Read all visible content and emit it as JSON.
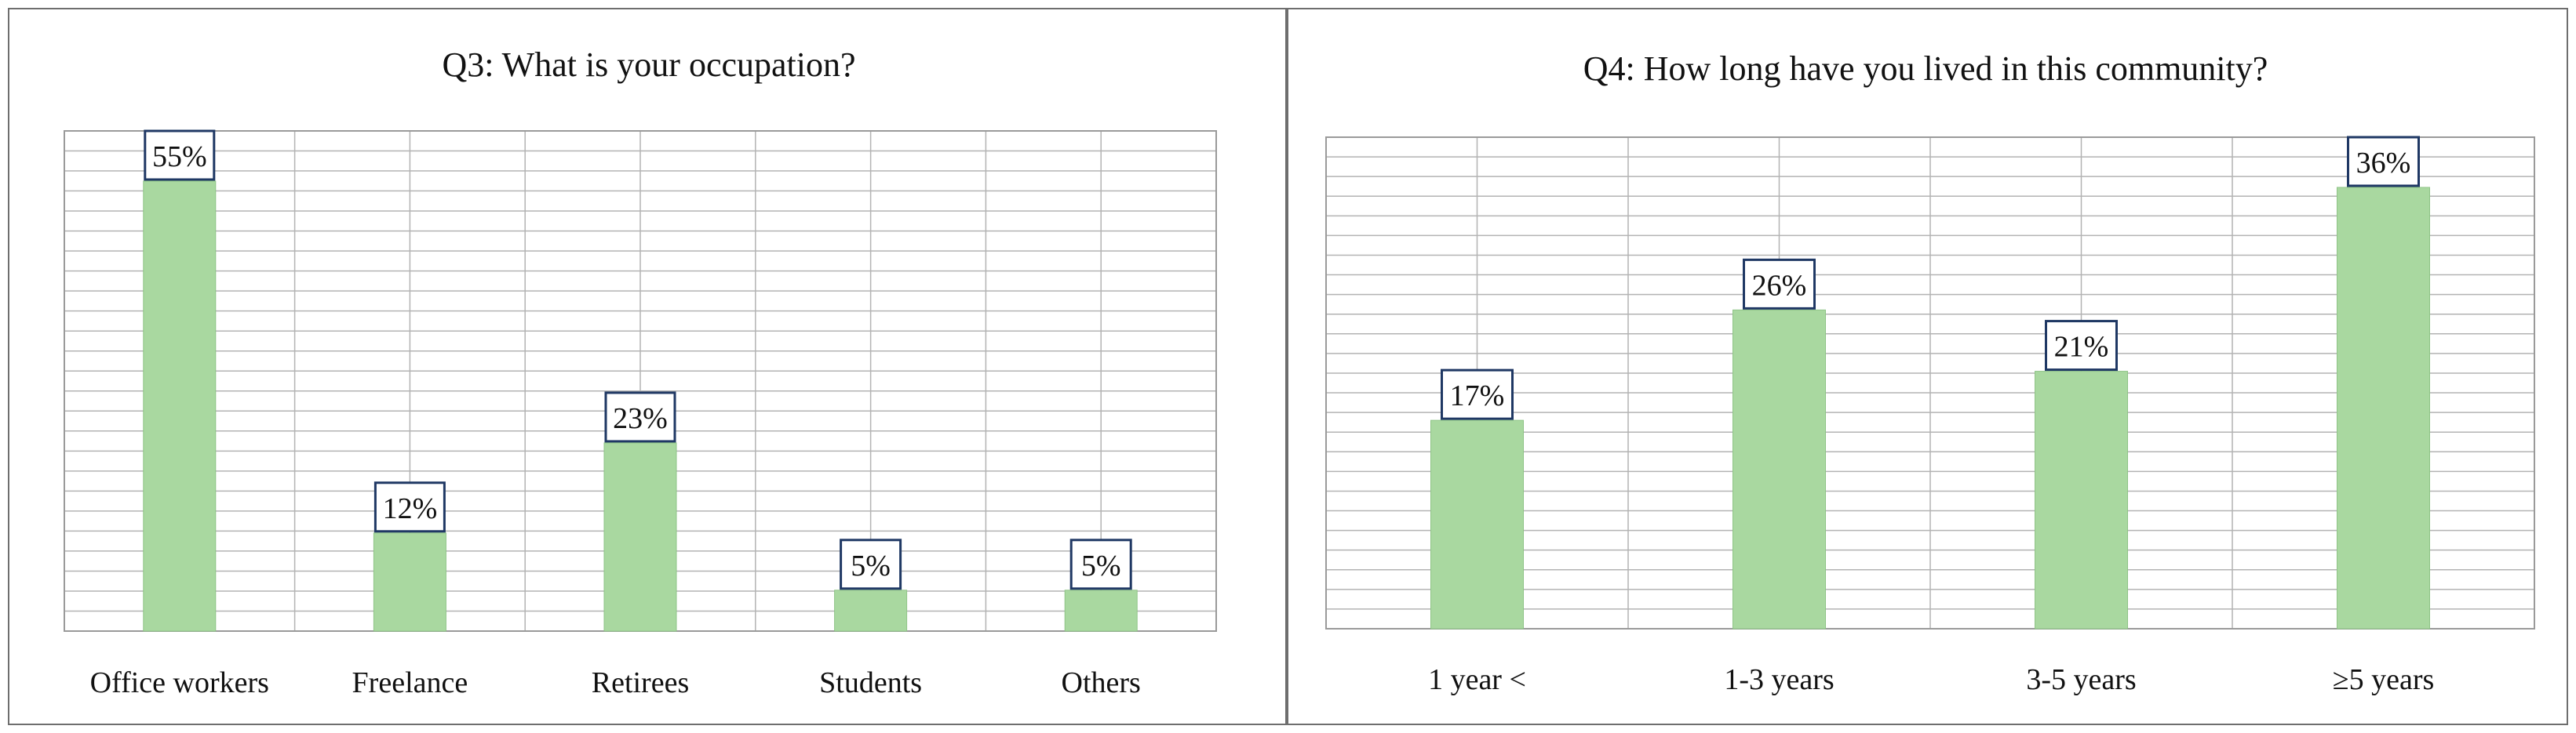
{
  "chart_data": [
    {
      "type": "bar",
      "title": "Q3: What is your occupation?",
      "categories": [
        "Office workers",
        "Freelance",
        "Retirees",
        "Students",
        "Others"
      ],
      "values": [
        55,
        12,
        23,
        5,
        5
      ],
      "value_labels": [
        "55%",
        "12%",
        "23%",
        "5%",
        "5%"
      ],
      "ylim": [
        0,
        55
      ],
      "grid": true,
      "bar_color": "#a9d8a0",
      "label_border_color": "#1f3864"
    },
    {
      "type": "bar",
      "title": "Q4: How long have you lived in this community?",
      "categories": [
        "1 year <",
        "1-3 years",
        "3-5 years",
        "≥5 years"
      ],
      "values": [
        17,
        26,
        21,
        36
      ],
      "value_labels": [
        "17%",
        "26%",
        "21%",
        "36%"
      ],
      "ylim": [
        0,
        36
      ],
      "grid": true,
      "bar_color": "#a9d8a0",
      "label_border_color": "#1f3864"
    }
  ]
}
